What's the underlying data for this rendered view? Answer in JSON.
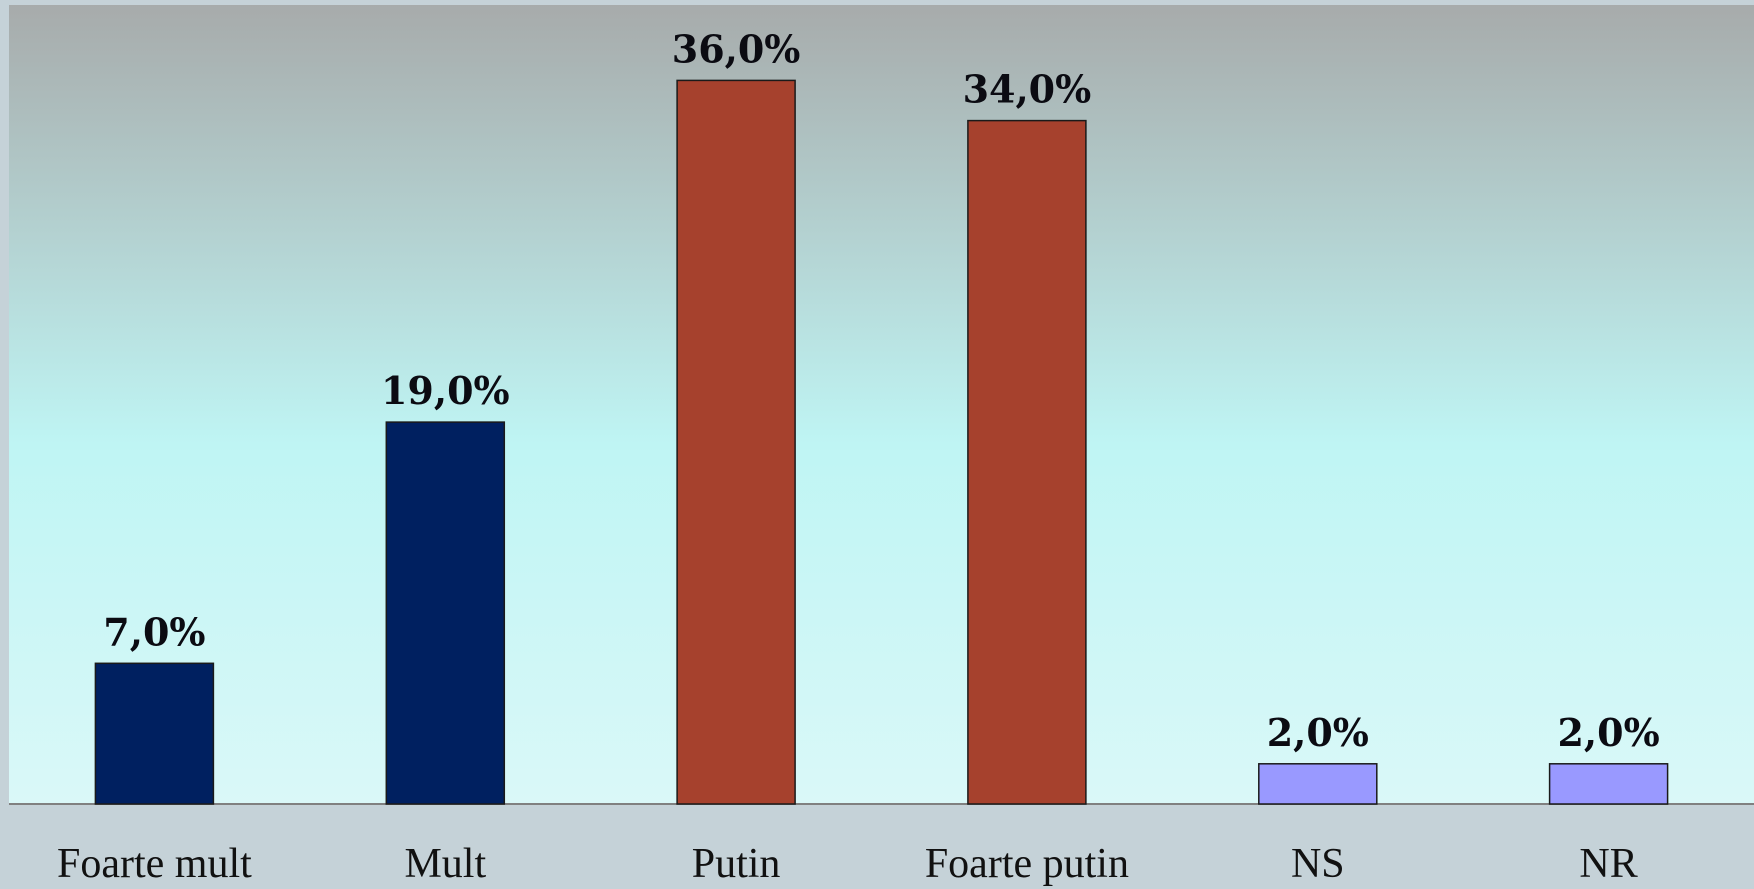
{
  "chart_data": {
    "type": "bar",
    "title": "",
    "xlabel": "",
    "ylabel": "",
    "ylim": [
      0,
      40
    ],
    "grid": false,
    "legend": "none",
    "categories": [
      "Foarte mult",
      "Mult",
      "Putin",
      "Foarte putin",
      "NS",
      "NR"
    ],
    "values": [
      7.0,
      19.0,
      36.0,
      34.0,
      2.0,
      2.0
    ],
    "value_labels": [
      "7,0%",
      "19,0%",
      "36,0%",
      "34,0%",
      "2,0%",
      "2,0%"
    ],
    "bar_colors": [
      "#002060",
      "#002060",
      "#a6412d",
      "#a6412d",
      "#9999ff",
      "#9999ff"
    ],
    "colors": {
      "background_top": "#a7abab",
      "background_mid": "#bff5f4",
      "background_bottom": "#daf8f8",
      "frame": "#c5d2d8",
      "bar_outline": "#1a1a1a"
    }
  }
}
